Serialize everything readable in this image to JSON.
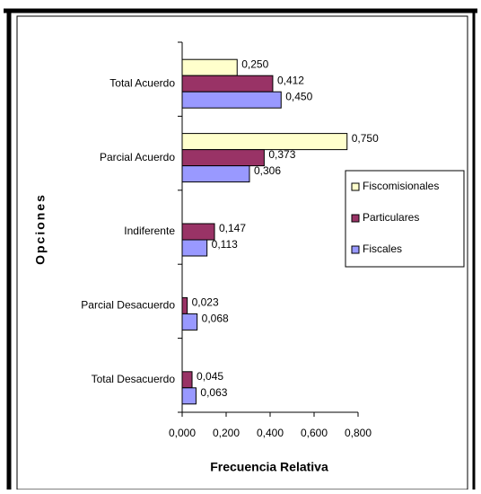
{
  "chart_data": {
    "type": "barh",
    "xlabel": "Frecuencia Relativa",
    "ylabel": "Opciones",
    "categories": [
      "Total Acuerdo",
      "Parcial Acuerdo",
      "Indiferente",
      "Parcial Desacuerdo",
      "Total Desacuerdo"
    ],
    "series": [
      {
        "name": "Fiscomisionales",
        "color": "#ffffcc",
        "values": [
          0.25,
          0.75,
          null,
          null,
          null
        ],
        "value_labels": [
          "0,250",
          "0,750",
          null,
          null,
          null
        ]
      },
      {
        "name": "Particulares",
        "color": "#993366",
        "values": [
          0.412,
          0.373,
          0.147,
          0.023,
          0.045
        ],
        "value_labels": [
          "0,412",
          "0,373",
          "0,147",
          "0,023",
          "0,045"
        ]
      },
      {
        "name": "Fiscales",
        "color": "#9999ff",
        "values": [
          0.45,
          0.306,
          0.113,
          0.068,
          0.063
        ],
        "value_labels": [
          "0,450",
          "0,306",
          "0,113",
          "0,068",
          "0,063"
        ]
      }
    ],
    "xlim": [
      0,
      0.8
    ],
    "xticks": [
      {
        "value": 0,
        "label": "0,000"
      },
      {
        "value": 0.2,
        "label": "0,200"
      },
      {
        "value": 0.4,
        "label": "0,400"
      },
      {
        "value": 0.6,
        "label": "0,600"
      },
      {
        "value": 0.8,
        "label": "0,800"
      }
    ],
    "legend": "right"
  }
}
